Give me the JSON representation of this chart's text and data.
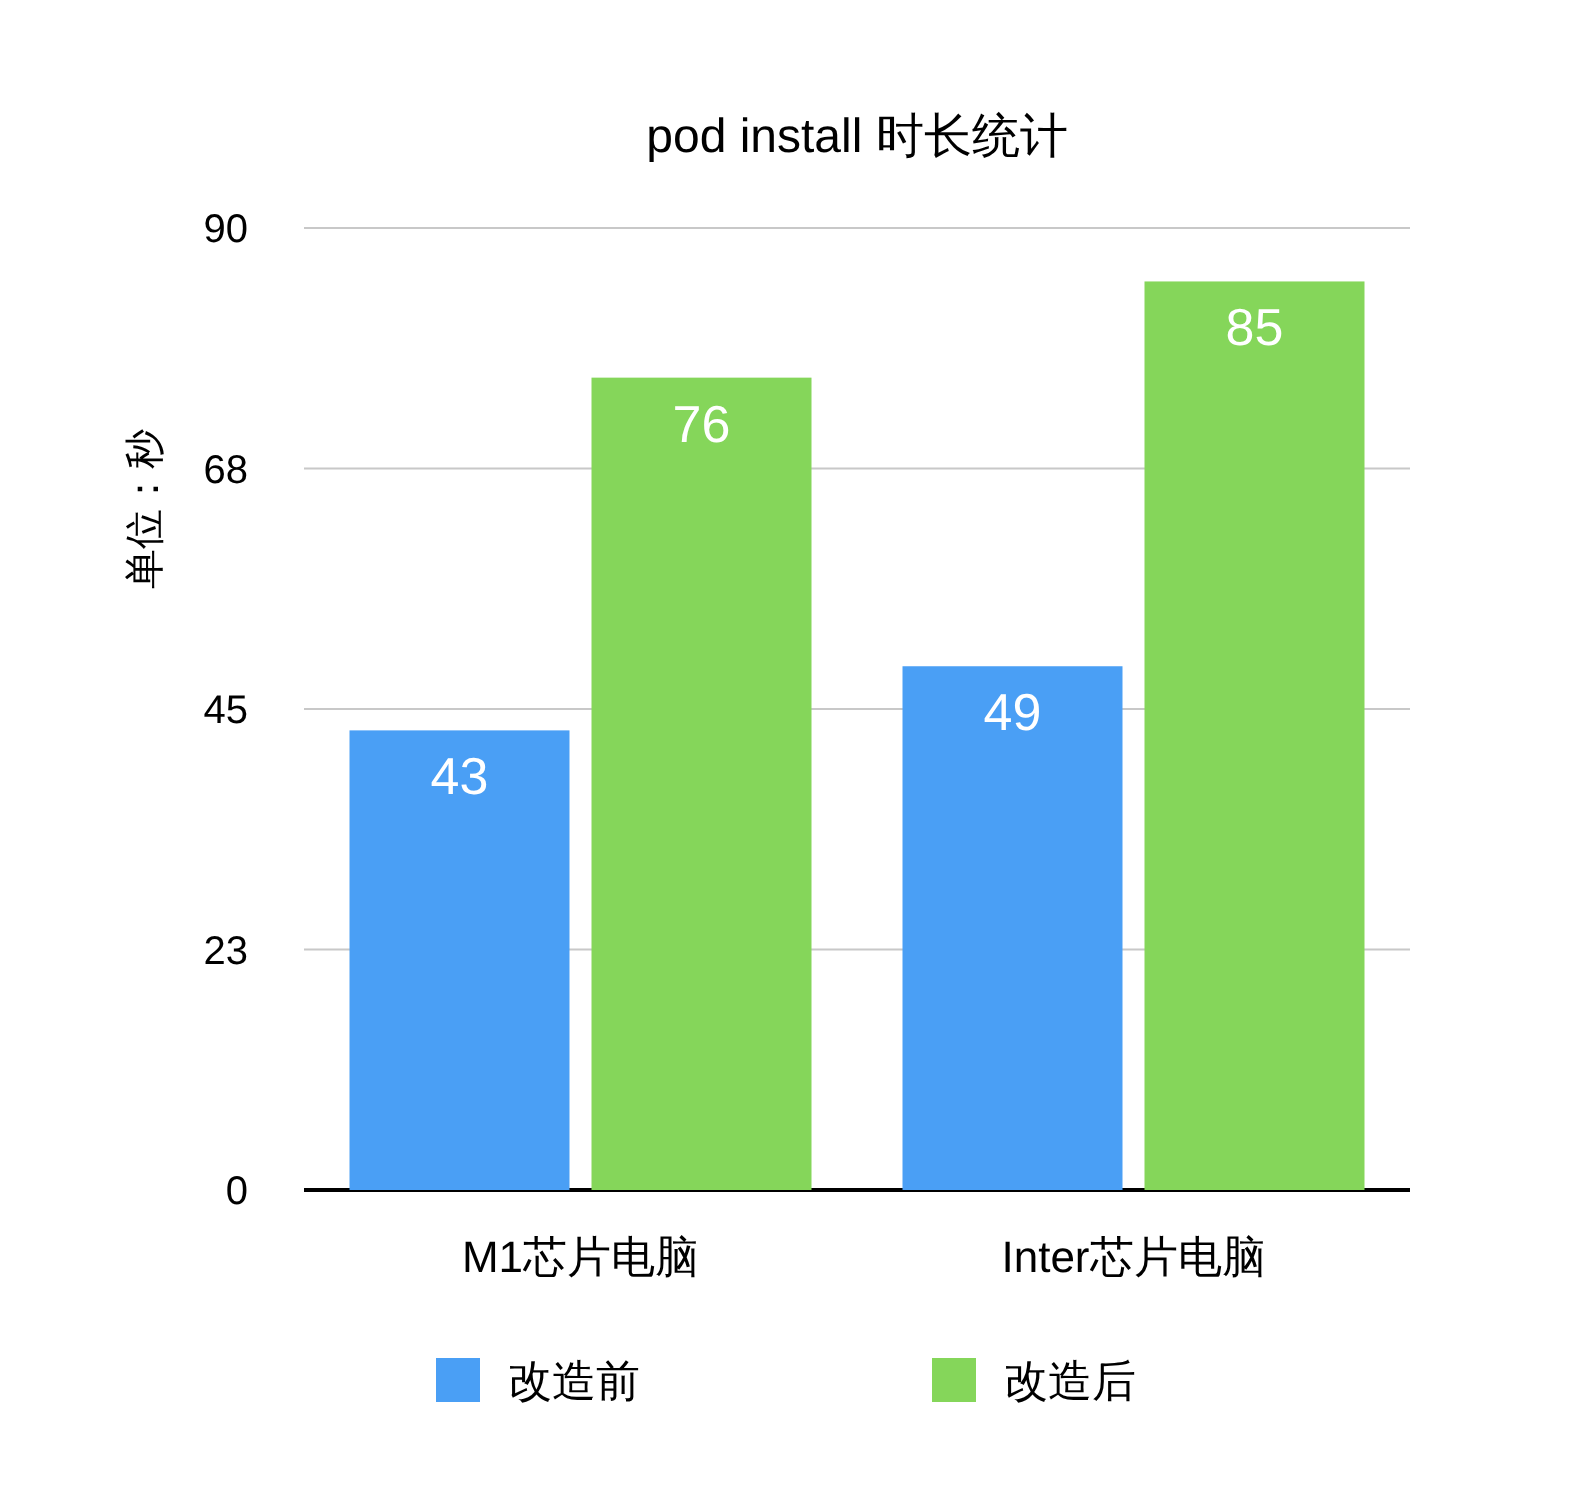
{
  "chart_data": {
    "type": "bar",
    "title": "pod install 时长统计",
    "ylabel": "单位：秒",
    "categories": [
      "M1芯片电脑",
      "Inter芯片电脑"
    ],
    "series": [
      {
        "name": "改造前",
        "color": "#4a9ff5",
        "values": [
          43,
          49
        ]
      },
      {
        "name": "改造后",
        "color": "#85d65a",
        "values": [
          76,
          85
        ]
      }
    ],
    "ylim": [
      0,
      90
    ],
    "yticks": [
      0,
      {
        "value": 22.5,
        "label": "23"
      },
      45,
      {
        "value": 67.5,
        "label": "68"
      },
      90
    ],
    "grid": "y",
    "data_labels": true,
    "legend": "bottom"
  }
}
